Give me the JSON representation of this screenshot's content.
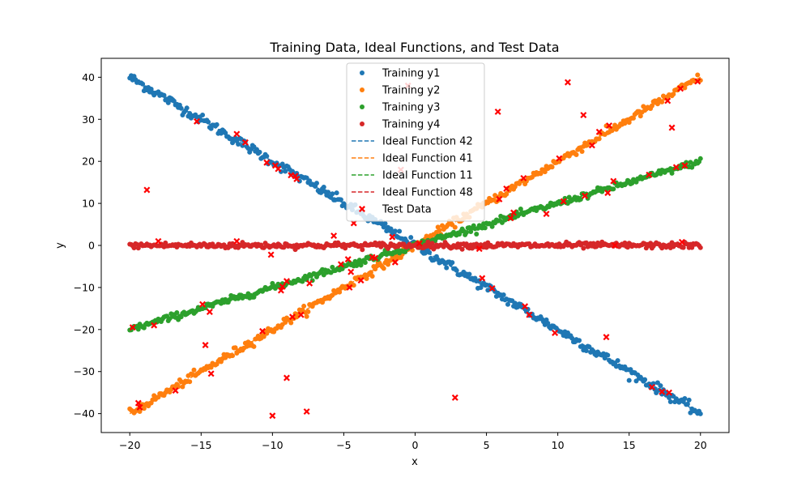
{
  "chart_data": {
    "type": "scatter",
    "title": "Training Data, Ideal Functions, and Test Data",
    "xlabel": "x",
    "ylabel": "y",
    "xlim": [
      -22,
      22
    ],
    "ylim": [
      -44.5,
      44.5
    ],
    "xticks": [
      -20,
      -15,
      -10,
      -5,
      0,
      5,
      10,
      15,
      20
    ],
    "yticks": [
      -40,
      -30,
      -20,
      -10,
      0,
      10,
      20,
      30,
      40
    ],
    "grid": false,
    "legend_position": "top-center",
    "training_x_range": [
      -20,
      20
    ],
    "training_step": 0.1,
    "series": [
      {
        "name": "Training y1",
        "kind": "scatter",
        "color": "#1f77b4",
        "formula": "y = -2x",
        "noise": 0.6
      },
      {
        "name": "Training y2",
        "kind": "scatter",
        "color": "#ff7f0e",
        "formula": "y = 2x",
        "noise": 0.5
      },
      {
        "name": "Training y3",
        "kind": "scatter",
        "color": "#2ca02c",
        "formula": "y = x",
        "noise": 0.4
      },
      {
        "name": "Training y4",
        "kind": "scatter",
        "color": "#d62728",
        "formula": "y = 0",
        "noise": 0.35
      },
      {
        "name": "Ideal Function 42",
        "kind": "dashed-line",
        "color": "#1f77b4",
        "formula": "y = -2x"
      },
      {
        "name": "Ideal Function 41",
        "kind": "dashed-line",
        "color": "#ff7f0e",
        "formula": "y = 2x"
      },
      {
        "name": "Ideal Function 11",
        "kind": "dashed-line",
        "color": "#2ca02c",
        "formula": "y = x"
      },
      {
        "name": "Ideal Function 48",
        "kind": "dashed-line",
        "color": "#d62728",
        "formula": "y = 0"
      }
    ],
    "test_data": {
      "name": "Test Data",
      "color": "#ff0000",
      "marker": "x",
      "points": [
        [
          -19.8,
          -19.5
        ],
        [
          -19.4,
          -37.5
        ],
        [
          -19.3,
          -38.5
        ],
        [
          -18.8,
          13.2
        ],
        [
          -18.3,
          -19.0
        ],
        [
          -18.0,
          1.0
        ],
        [
          -16.8,
          -34.5
        ],
        [
          -15.3,
          29.5
        ],
        [
          -14.9,
          -14.0
        ],
        [
          -14.7,
          -23.7
        ],
        [
          -14.4,
          -15.8
        ],
        [
          -14.3,
          -30.5
        ],
        [
          -12.5,
          26.5
        ],
        [
          -12.5,
          1.0
        ],
        [
          -11.9,
          24.5
        ],
        [
          -10.7,
          -20.4
        ],
        [
          -10.4,
          19.7
        ],
        [
          -10.1,
          -2.2
        ],
        [
          -10.0,
          -40.5
        ],
        [
          -9.8,
          19.0
        ],
        [
          -9.6,
          18.2
        ],
        [
          -9.4,
          -10.7
        ],
        [
          -9.3,
          -9.8
        ],
        [
          -9.0,
          -8.5
        ],
        [
          -9.0,
          -31.5
        ],
        [
          -8.7,
          16.7
        ],
        [
          -8.6,
          -17.0
        ],
        [
          -8.4,
          16.5
        ],
        [
          -8.3,
          15.8
        ],
        [
          -8.0,
          -16.5
        ],
        [
          -7.6,
          -39.5
        ],
        [
          -7.4,
          -9.0
        ],
        [
          -5.7,
          2.3
        ],
        [
          -5.2,
          -4.5
        ],
        [
          -4.7,
          -3.3
        ],
        [
          -4.6,
          -10.0
        ],
        [
          -4.5,
          -6.3
        ],
        [
          -4.3,
          5.3
        ],
        [
          -3.8,
          -8.3
        ],
        [
          -3.0,
          -2.8
        ],
        [
          -2.8,
          -3.0
        ],
        [
          -1.6,
          2.0
        ],
        [
          -1.4,
          -4.0
        ],
        [
          -1.0,
          18.0
        ],
        [
          -0.5,
          38.0
        ],
        [
          0.3,
          0.5
        ],
        [
          2.8,
          -36.2
        ],
        [
          4.5,
          -0.8
        ],
        [
          4.7,
          -7.8
        ],
        [
          5.4,
          -10.2
        ],
        [
          5.8,
          31.8
        ],
        [
          5.9,
          11.0
        ],
        [
          6.4,
          13.5
        ],
        [
          6.7,
          6.5
        ],
        [
          6.9,
          7.8
        ],
        [
          7.6,
          16.0
        ],
        [
          7.7,
          -14.5
        ],
        [
          8.0,
          -16.5
        ],
        [
          9.2,
          7.5
        ],
        [
          9.8,
          -20.8
        ],
        [
          10.1,
          20.7
        ],
        [
          10.4,
          10.5
        ],
        [
          10.7,
          38.8
        ],
        [
          11.8,
          31.0
        ],
        [
          11.9,
          11.8
        ],
        [
          12.4,
          23.8
        ],
        [
          12.9,
          27.0
        ],
        [
          13.4,
          -21.8
        ],
        [
          13.5,
          12.5
        ],
        [
          13.6,
          28.5
        ],
        [
          13.9,
          15.3
        ],
        [
          14.0,
          0.0
        ],
        [
          16.4,
          16.8
        ],
        [
          16.6,
          -33.7
        ],
        [
          17.3,
          -34.8
        ],
        [
          17.7,
          34.4
        ],
        [
          17.8,
          -35.0
        ],
        [
          18.0,
          28.0
        ],
        [
          18.3,
          18.6
        ],
        [
          18.6,
          37.3
        ],
        [
          18.7,
          0.8
        ],
        [
          18.9,
          19.0
        ],
        [
          19.8,
          39.0
        ]
      ]
    }
  }
}
